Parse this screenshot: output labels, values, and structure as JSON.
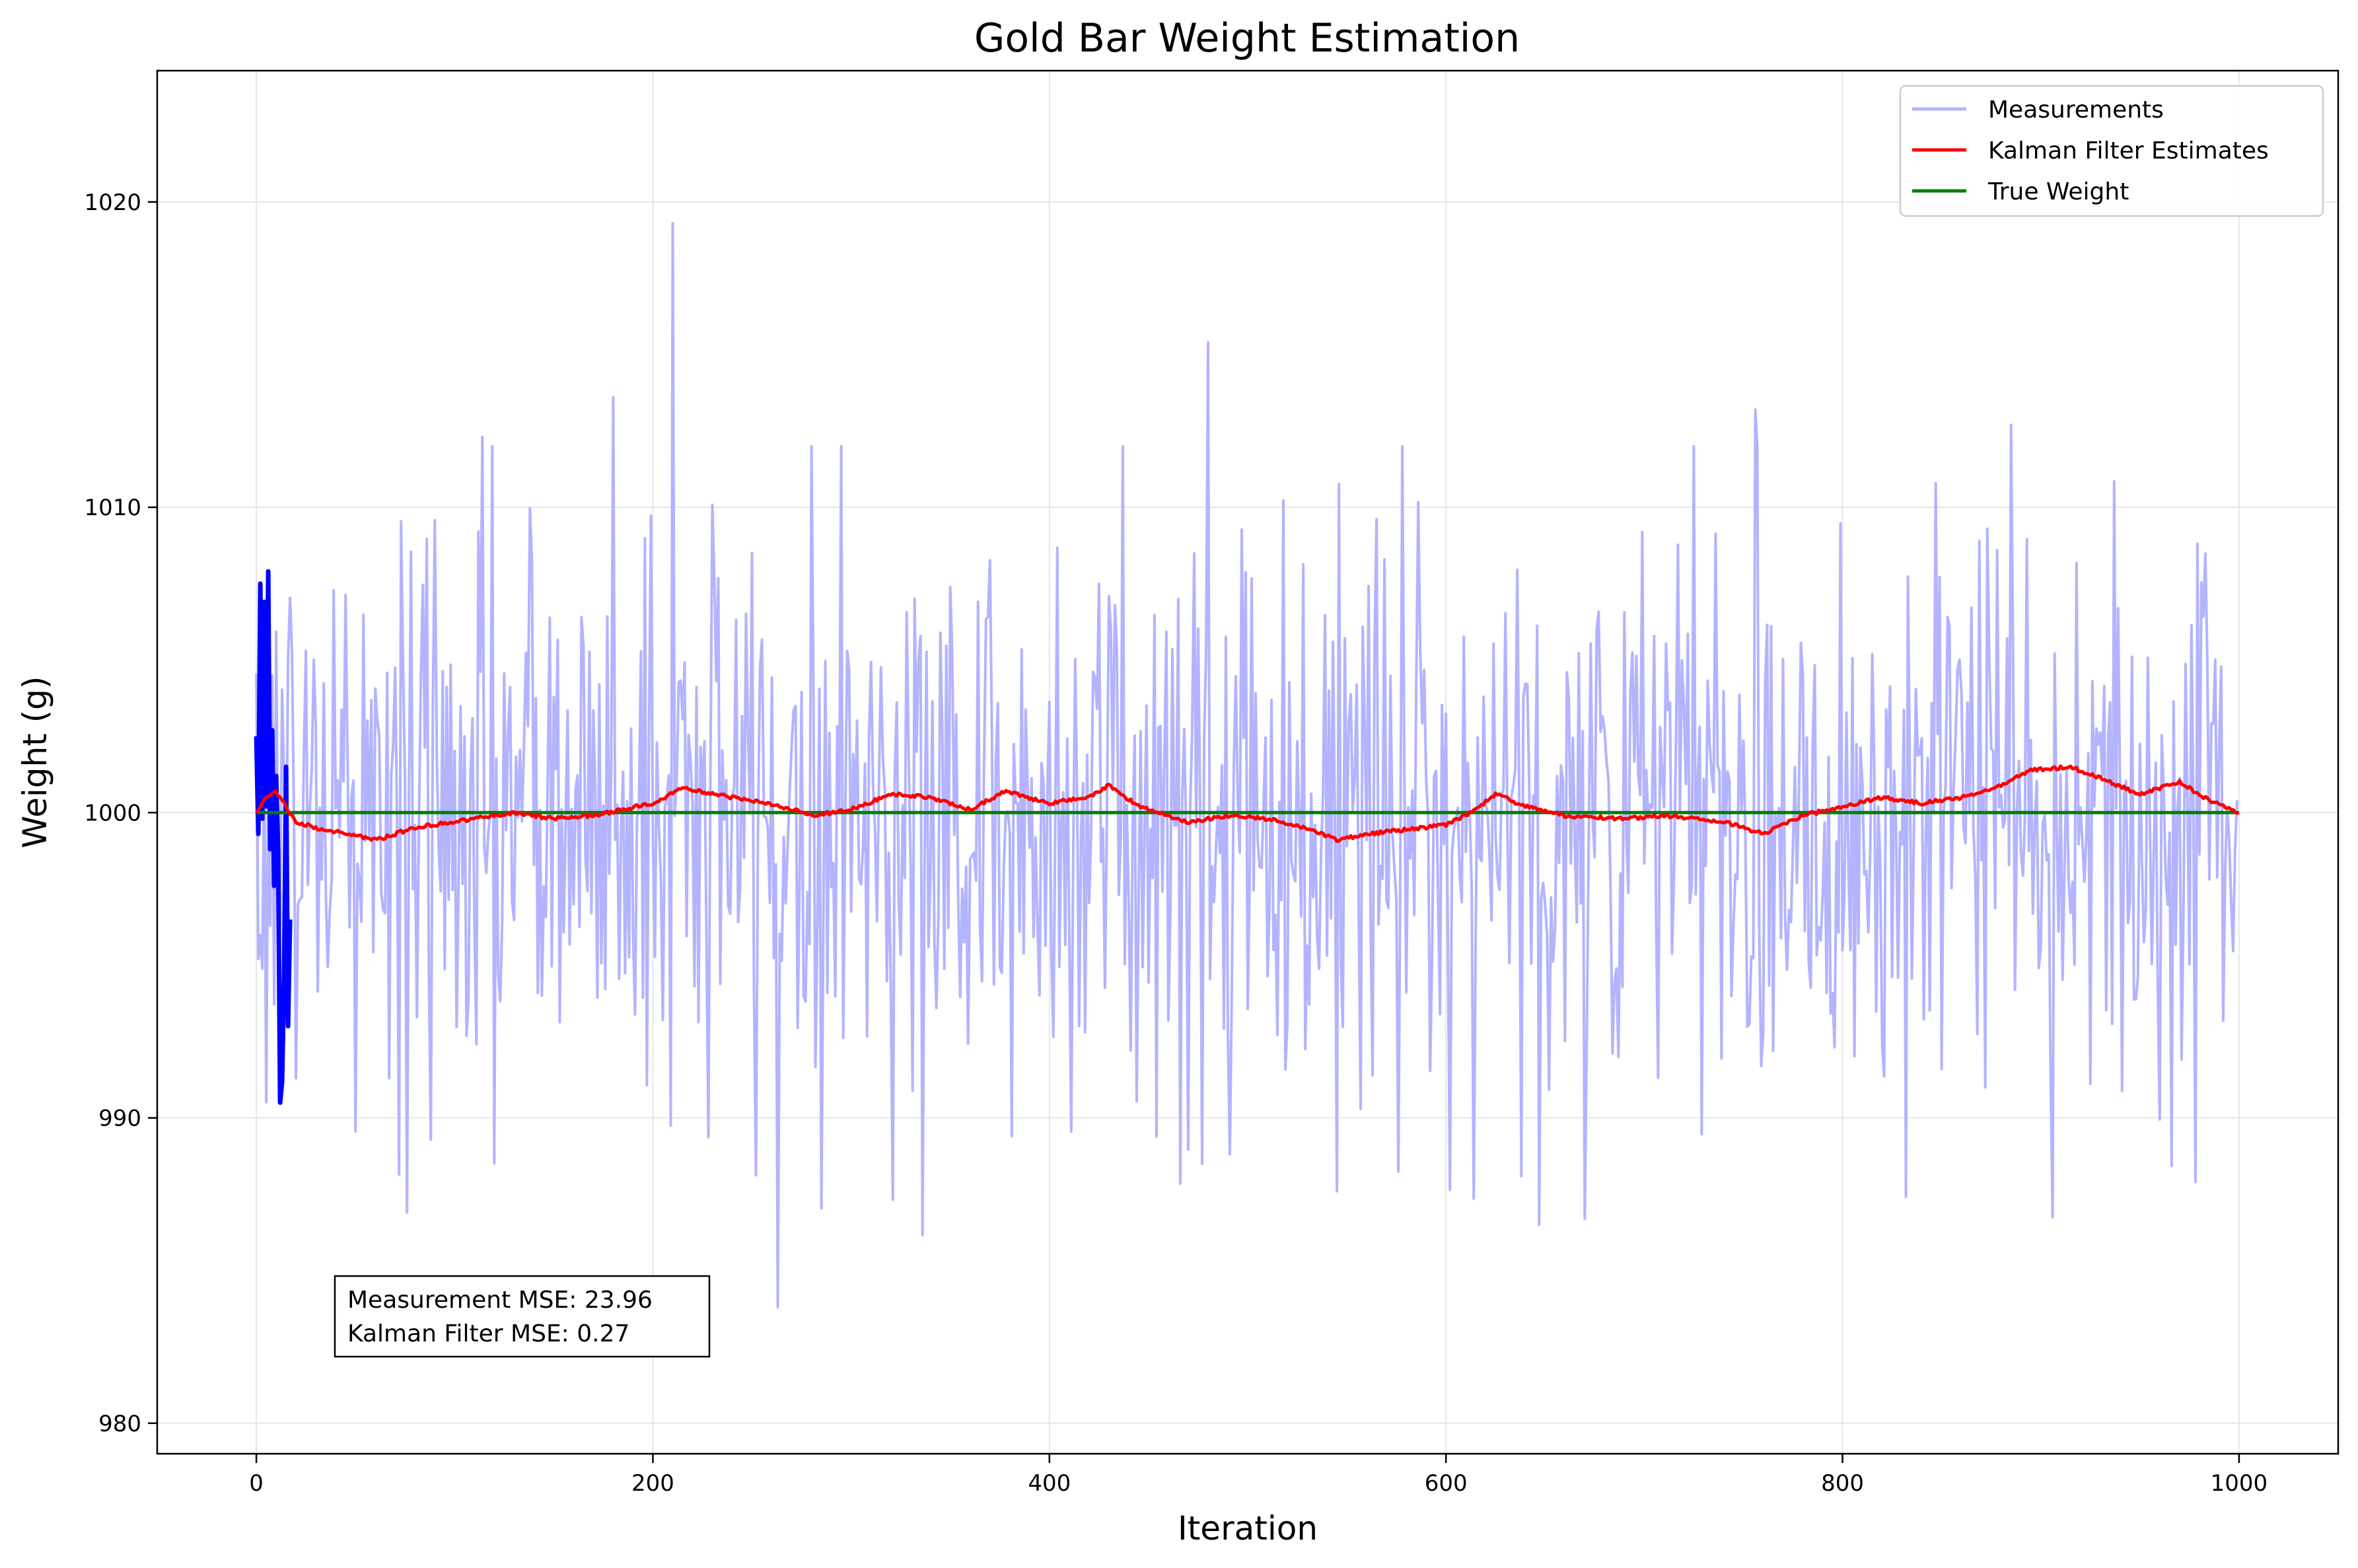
{
  "chart_data": {
    "type": "line",
    "title": "Gold Bar Weight Estimation",
    "xlabel": "Iteration",
    "ylabel": "Weight (g)",
    "xlim": [
      -50,
      1050
    ],
    "ylim": [
      979,
      1024.3
    ],
    "xticks": [
      0,
      200,
      400,
      600,
      800,
      1000
    ],
    "yticks": [
      980,
      990,
      1000,
      1010,
      1020
    ],
    "grid": true,
    "legend_position": "top-right",
    "n_points": 1000,
    "series": [
      {
        "name": "Measurements",
        "color": "#b3b3ff",
        "noise_std_g": 4.9,
        "range": [
          983.8,
          1019.3
        ],
        "highlights": [
          {
            "x": 76,
            "y": 986.9
          },
          {
            "x": 114,
            "y": 1012.3
          },
          {
            "x": 180,
            "y": 1013.6
          },
          {
            "x": 210,
            "y": 1019.3
          },
          {
            "x": 263,
            "y": 983.8
          },
          {
            "x": 381,
            "y": 989.4
          },
          {
            "x": 477,
            "y": 988.5
          },
          {
            "x": 480,
            "y": 1015.4
          },
          {
            "x": 545,
            "y": 987.6
          },
          {
            "x": 647,
            "y": 986.5
          },
          {
            "x": 670,
            "y": 986.7
          },
          {
            "x": 756,
            "y": 1013.2
          },
          {
            "x": 885,
            "y": 1012.7
          },
          {
            "x": 978,
            "y": 987.9
          }
        ]
      },
      {
        "name": "Kalman Filter Estimates",
        "color": "#ff0000",
        "points": [
          [
            0,
            1000.0
          ],
          [
            5,
            1000.5
          ],
          [
            10,
            1000.7
          ],
          [
            15,
            1000.2
          ],
          [
            20,
            999.7
          ],
          [
            30,
            999.5
          ],
          [
            45,
            999.3
          ],
          [
            60,
            999.1
          ],
          [
            80,
            999.5
          ],
          [
            100,
            999.7
          ],
          [
            120,
            999.9
          ],
          [
            130,
            1000.0
          ],
          [
            150,
            999.8
          ],
          [
            170,
            999.9
          ],
          [
            200,
            1000.3
          ],
          [
            215,
            1000.8
          ],
          [
            230,
            1000.6
          ],
          [
            250,
            1000.4
          ],
          [
            265,
            1000.2
          ],
          [
            280,
            999.9
          ],
          [
            300,
            1000.1
          ],
          [
            320,
            1000.6
          ],
          [
            340,
            1000.5
          ],
          [
            360,
            1000.1
          ],
          [
            378,
            1000.7
          ],
          [
            400,
            1000.3
          ],
          [
            420,
            1000.5
          ],
          [
            430,
            1000.9
          ],
          [
            445,
            1000.2
          ],
          [
            470,
            999.7
          ],
          [
            490,
            999.9
          ],
          [
            510,
            999.8
          ],
          [
            530,
            999.5
          ],
          [
            545,
            999.1
          ],
          [
            560,
            999.3
          ],
          [
            575,
            999.4
          ],
          [
            600,
            999.6
          ],
          [
            615,
            1000.1
          ],
          [
            625,
            1000.6
          ],
          [
            640,
            1000.2
          ],
          [
            660,
            999.9
          ],
          [
            690,
            999.8
          ],
          [
            710,
            999.9
          ],
          [
            740,
            999.7
          ],
          [
            760,
            999.3
          ],
          [
            780,
            999.9
          ],
          [
            800,
            1000.2
          ],
          [
            820,
            1000.5
          ],
          [
            840,
            1000.3
          ],
          [
            860,
            1000.5
          ],
          [
            880,
            1000.9
          ],
          [
            895,
            1001.4
          ],
          [
            915,
            1001.5
          ],
          [
            935,
            1001.0
          ],
          [
            950,
            1000.6
          ],
          [
            970,
            1001.0
          ],
          [
            985,
            1000.4
          ],
          [
            1000,
            1000.0
          ]
        ]
      },
      {
        "name": "True Weight",
        "color": "#008000",
        "points": [
          [
            0,
            1000
          ],
          [
            1000,
            1000
          ]
        ]
      }
    ],
    "initial_segment": {
      "color": "#0000ff",
      "points": [
        [
          0,
          1002.5
        ],
        [
          1,
          999.3
        ],
        [
          2,
          1007.5
        ],
        [
          3,
          999.8
        ],
        [
          4,
          1006.9
        ],
        [
          5,
          1000.2
        ],
        [
          6,
          1007.9
        ],
        [
          7,
          998.8
        ],
        [
          8,
          1002.7
        ],
        [
          9,
          997.6
        ],
        [
          10,
          1001.2
        ],
        [
          11,
          998.7
        ],
        [
          12,
          990.5
        ],
        [
          13,
          991.2
        ],
        [
          14,
          994.7
        ],
        [
          15,
          1001.5
        ],
        [
          16,
          993.0
        ],
        [
          17,
          996.5
        ]
      ]
    },
    "annotation": {
      "lines": [
        "Measurement MSE: 23.96",
        "Kalman Filter MSE: 0.27"
      ],
      "position": "lower-left"
    }
  }
}
